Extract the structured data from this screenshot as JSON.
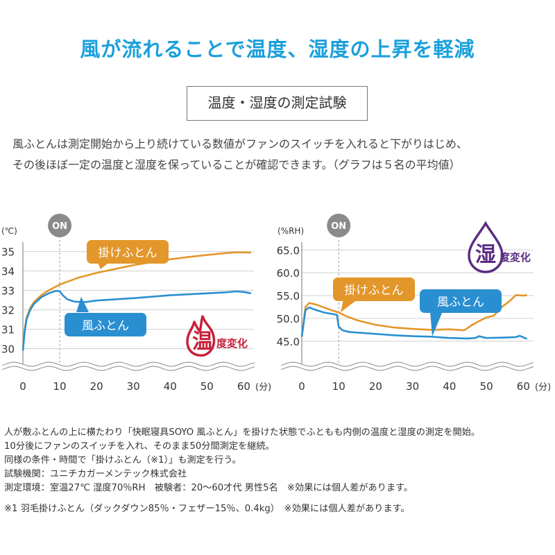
{
  "headline": "風が流れることで温度、湿度の上昇を軽減",
  "section_title": "温度・湿度の測定試験",
  "intro": [
    "風ふとんは測定開始から上り続けている数値がファンのスイッチを入れると下がりはじめ、",
    "その後ほぼ一定の温度と湿度を保っていることが確認できます。（グラフは５名の平均値）"
  ],
  "colors": {
    "kake": "#e3962a",
    "kaze": "#2a8fd1",
    "temp_icon": "#c7203a",
    "hum_icon": "#5a2d82",
    "on_badge": "#8a8a8a",
    "headline": "#1aa0dc"
  },
  "chart_data": [
    {
      "type": "line",
      "ylabel": "(℃)",
      "xlabel": "(分)",
      "x_ticks": [
        0,
        10,
        20,
        30,
        40,
        50,
        60
      ],
      "y_ticks": [
        "35",
        "34",
        "33",
        "32",
        "31",
        "30"
      ],
      "ylim": [
        29.7,
        35.2
      ],
      "xlim": [
        0,
        62
      ],
      "grid": true,
      "on_marker": {
        "label": "ON",
        "x": 10
      },
      "badge": {
        "big": "温",
        "small": "度変化",
        "icon": "flame-icon"
      },
      "series": [
        {
          "name": "掛けふとん",
          "color": "#e3962a",
          "x": [
            0,
            0.5,
            1,
            2,
            3,
            5,
            7,
            10,
            15,
            20,
            25,
            30,
            35,
            40,
            45,
            50,
            55,
            58,
            62
          ],
          "y": [
            29.9,
            31.0,
            31.6,
            32.1,
            32.4,
            32.75,
            33.0,
            33.3,
            33.65,
            33.9,
            34.1,
            34.3,
            34.45,
            34.6,
            34.72,
            34.82,
            34.92,
            34.96,
            34.95
          ]
        },
        {
          "name": "風ふとん",
          "color": "#2a8fd1",
          "x": [
            0,
            0.5,
            1,
            2,
            3,
            5,
            7,
            9,
            10,
            11,
            12,
            14,
            17,
            20,
            30,
            40,
            45,
            50,
            55,
            58,
            60,
            62
          ],
          "y": [
            29.9,
            30.9,
            31.5,
            32.0,
            32.3,
            32.65,
            32.85,
            32.98,
            32.95,
            32.72,
            32.55,
            32.42,
            32.4,
            32.48,
            32.6,
            32.75,
            32.8,
            32.85,
            32.9,
            32.95,
            32.92,
            32.85
          ]
        }
      ]
    },
    {
      "type": "line",
      "ylabel": "(%RH)",
      "xlabel": "(分)",
      "x_ticks": [
        0,
        10,
        20,
        30,
        40,
        50,
        60
      ],
      "y_ticks": [
        "65.0",
        "60.0",
        "55.0",
        "50.0",
        "45.0"
      ],
      "ylim": [
        43.0,
        65.5
      ],
      "xlim": [
        0,
        62
      ],
      "grid": true,
      "on_marker": {
        "label": "ON",
        "x": 10
      },
      "badge": {
        "big": "湿",
        "small": "度変化",
        "icon": "droplet-icon"
      },
      "series": [
        {
          "name": "掛けふとん",
          "color": "#e3962a",
          "x": [
            0,
            1,
            2,
            4,
            6,
            8,
            10,
            12,
            15,
            20,
            25,
            30,
            35,
            40,
            44,
            46,
            48,
            50,
            52,
            54,
            56,
            58,
            60,
            61
          ],
          "y": [
            46.0,
            52.5,
            53.4,
            53.0,
            52.4,
            51.8,
            51.3,
            50.5,
            49.6,
            48.6,
            48.0,
            47.7,
            47.5,
            47.6,
            47.4,
            48.5,
            49.4,
            50.2,
            50.6,
            52.4,
            53.6,
            55.1,
            55.0,
            55.1
          ]
        },
        {
          "name": "風ふとん",
          "color": "#2a8fd1",
          "x": [
            0,
            1,
            2,
            4,
            6,
            8,
            9.5,
            10,
            11,
            13,
            15,
            20,
            25,
            30,
            35,
            40,
            45,
            47,
            48,
            50,
            55,
            58,
            59,
            61
          ],
          "y": [
            46.0,
            51.8,
            52.4,
            51.8,
            51.3,
            51.0,
            50.8,
            48.2,
            47.4,
            47.0,
            46.9,
            46.6,
            46.3,
            46.1,
            46.0,
            45.7,
            45.6,
            45.7,
            46.1,
            45.7,
            45.8,
            45.9,
            46.2,
            45.5
          ]
        }
      ]
    }
  ],
  "footnotes": [
    "人が敷ふとんの上に横たわり「快眠寝具SOYO 風ふとん」を掛けた状態でふともも内側の温度と湿度の測定を開始。",
    "10分後にファンのスイッチを入れ、そのまま50分間測定を継続。",
    "同様の条件・時間で「掛けふとん（※1）」も測定を行う。",
    "試験機関：ユニチカガーメンテック株式会社",
    "測定環境：室温27℃ 湿度70％RH　被験者：20〜60才代 男性5名　※効果には個人差があります。",
    "※1 羽毛掛けふとん（ダックダウン85％・フェザー15％、0.4kg）　※効果には個人差があります。"
  ]
}
